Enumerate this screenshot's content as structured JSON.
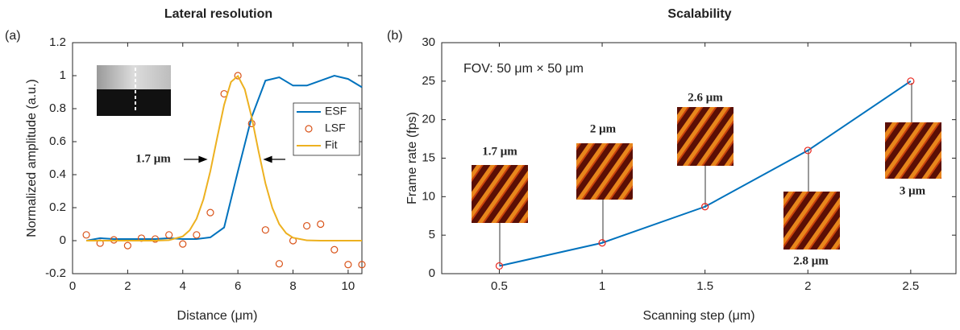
{
  "chart_data": [
    {
      "type": "line",
      "title": "Lateral resolution",
      "panel_label": "(a)",
      "xlabel": "Distance (μm)",
      "ylabel": "Normalized amplitude (a.u.)",
      "xlim": [
        0,
        10.5
      ],
      "ylim": [
        -0.2,
        1.2
      ],
      "xticks": [
        0,
        2,
        4,
        6,
        8,
        10
      ],
      "yticks": [
        -0.2,
        0,
        0.2,
        0.4,
        0.6,
        0.8,
        1,
        1.2
      ],
      "legend": "center right",
      "annotation": "1.7 μm",
      "series": [
        {
          "name": "ESF",
          "color": "#0072BD",
          "style": "line",
          "x": [
            0.5,
            1,
            1.5,
            2,
            2.5,
            3,
            3.5,
            4,
            4.5,
            5,
            5.5,
            6,
            6.5,
            7,
            7.5,
            8,
            8.5,
            9,
            9.5,
            10,
            10.5
          ],
          "values": [
            0,
            0.015,
            0.01,
            0.01,
            0.01,
            0.01,
            0.015,
            0.01,
            0.01,
            0.02,
            0.08,
            0.42,
            0.75,
            0.97,
            0.99,
            0.94,
            0.94,
            0.97,
            1.0,
            0.98,
            0.93
          ]
        },
        {
          "name": "LSF",
          "color": "#D95319",
          "style": "marker",
          "x": [
            0.5,
            1,
            1.5,
            2,
            2.5,
            3,
            3.5,
            4,
            4.5,
            5,
            5.5,
            6,
            6.5,
            7,
            7.5,
            8,
            8.5,
            9,
            9.5,
            10,
            10.5
          ],
          "values": [
            0.035,
            -0.015,
            0.005,
            -0.03,
            0.015,
            0.01,
            0.035,
            -0.02,
            0.035,
            0.17,
            0.89,
            1.0,
            0.71,
            0.065,
            -0.14,
            0.0,
            0.09,
            0.1,
            -0.055,
            -0.145,
            -0.145
          ]
        },
        {
          "name": "Fit",
          "color": "#EDB120",
          "style": "line",
          "x": [
            0.5,
            3,
            3.5,
            4,
            4.25,
            4.5,
            4.75,
            5,
            5.25,
            5.5,
            5.75,
            6,
            6.25,
            6.5,
            6.75,
            7,
            7.25,
            7.5,
            7.75,
            8,
            8.5,
            9,
            10.5
          ],
          "values": [
            0,
            0,
            0.003,
            0.026,
            0.063,
            0.133,
            0.251,
            0.421,
            0.625,
            0.823,
            0.962,
            0.998,
            0.917,
            0.748,
            0.541,
            0.347,
            0.198,
            0.1,
            0.045,
            0.018,
            0.002,
            0,
            0
          ]
        }
      ]
    },
    {
      "type": "line",
      "title": "Scalability",
      "panel_label": "(b)",
      "xlabel": "Scanning step (μm)",
      "ylabel": "Frame rate (fps)",
      "xlim": [
        0.22,
        2.72
      ],
      "ylim": [
        0,
        30
      ],
      "xticks": [
        0.5,
        1,
        1.5,
        2,
        2.5
      ],
      "yticks": [
        0,
        5,
        10,
        15,
        20,
        25,
        30
      ],
      "annotation": "FOV: 50 μm × 50 μm",
      "image_labels": [
        "1.7 μm",
        "2 μm",
        "2.6 μm",
        "2.8 μm",
        "3 μm"
      ],
      "series": [
        {
          "color": "#0072BD",
          "marker_color": "#E8231B",
          "style": "line-marker",
          "x": [
            0.5,
            1,
            1.5,
            2,
            2.5
          ],
          "values": [
            1,
            4,
            8.7,
            16,
            25
          ]
        }
      ]
    }
  ]
}
